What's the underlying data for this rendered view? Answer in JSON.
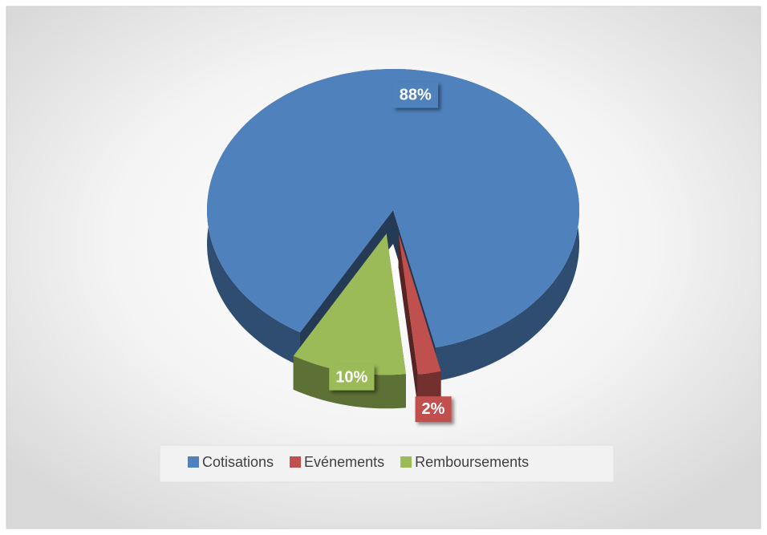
{
  "chart_data": {
    "type": "pie",
    "categories": [
      "Cotisations",
      "Evénements",
      "Remboursements"
    ],
    "values": [
      88,
      2,
      10
    ],
    "value_labels": [
      "88%",
      "2%",
      "10%"
    ],
    "colors": [
      "#4f81bd",
      "#c0504d",
      "#9bbb59"
    ],
    "legend": "bottom"
  }
}
